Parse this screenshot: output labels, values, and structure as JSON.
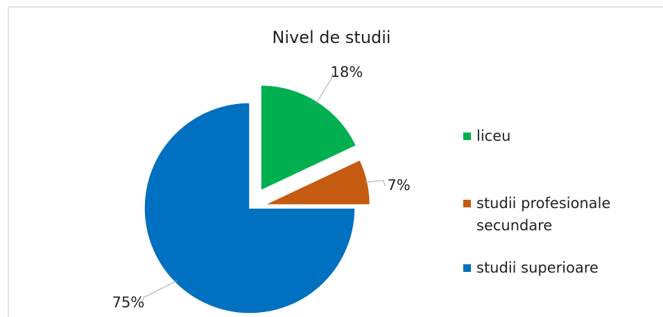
{
  "chart_data": {
    "type": "pie",
    "title": "Nivel de studii",
    "categories": [
      "liceu",
      "studii profesionale secundare",
      "studii superioare"
    ],
    "values": [
      18,
      7,
      75
    ],
    "value_labels": [
      "18%",
      "7%",
      "75%"
    ],
    "colors": [
      "#00b050",
      "#c55a11",
      "#0070c0"
    ],
    "legend": "right"
  }
}
